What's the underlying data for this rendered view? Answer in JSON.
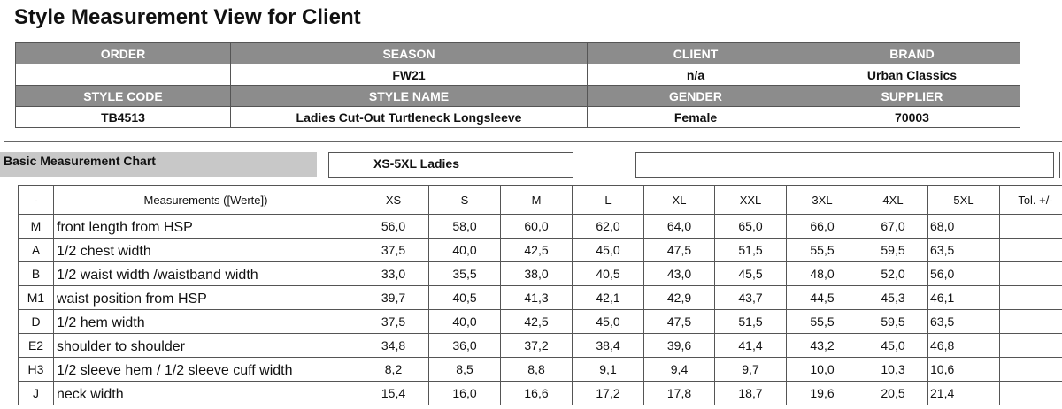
{
  "header": {
    "title": "Style Measurement View for Client"
  },
  "info": {
    "rows": [
      {
        "labels": [
          "ORDER",
          "SEASON",
          "CLIENT",
          "BRAND"
        ],
        "values": [
          null,
          "FW21",
          "n/a",
          "Urban Classics"
        ]
      },
      {
        "labels": [
          "STYLE CODE",
          "STYLE NAME",
          "GENDER",
          "SUPPLIER"
        ],
        "values": [
          "TB4513",
          "Ladies Cut-Out Turtleneck Longsleeve",
          "Female",
          "70003"
        ]
      }
    ]
  },
  "chart_section": {
    "label": "Basic Measurement Chart",
    "size_range": "XS-5XL Ladies"
  },
  "table": {
    "columns": [
      "-",
      "Measurements ([Werte])",
      "XS",
      "S",
      "M",
      "L",
      "XL",
      "XXL",
      "3XL",
      "4XL",
      "5XL",
      "Tol. +/-"
    ],
    "rows": [
      {
        "code": "M",
        "name": "front length from HSP",
        "values": [
          "56,0",
          "58,0",
          "60,0",
          "62,0",
          "64,0",
          "65,0",
          "66,0",
          "67,0",
          "68,0"
        ]
      },
      {
        "code": "A",
        "name": "1/2 chest width",
        "values": [
          "37,5",
          "40,0",
          "42,5",
          "45,0",
          "47,5",
          "51,5",
          "55,5",
          "59,5",
          "63,5"
        ]
      },
      {
        "code": "B",
        "name": "1/2 waist width /waistband width",
        "values": [
          "33,0",
          "35,5",
          "38,0",
          "40,5",
          "43,0",
          "45,5",
          "48,0",
          "52,0",
          "56,0"
        ]
      },
      {
        "code": "M1",
        "name": "waist position from HSP",
        "values": [
          "39,7",
          "40,5",
          "41,3",
          "42,1",
          "42,9",
          "43,7",
          "44,5",
          "45,3",
          "46,1"
        ]
      },
      {
        "code": "D",
        "name": "1/2 hem width",
        "values": [
          "37,5",
          "40,0",
          "42,5",
          "45,0",
          "47,5",
          "51,5",
          "55,5",
          "59,5",
          "63,5"
        ]
      },
      {
        "code": "E2",
        "name": "shoulder to shoulder",
        "values": [
          "34,8",
          "36,0",
          "37,2",
          "38,4",
          "39,6",
          "41,4",
          "43,2",
          "45,0",
          "46,8"
        ]
      },
      {
        "code": "H3",
        "name": "1/2 sleeve hem / 1/2 sleeve cuff width",
        "values": [
          "8,2",
          "8,5",
          "8,8",
          "9,1",
          "9,4",
          "9,7",
          "10,0",
          "10,3",
          "10,6"
        ]
      },
      {
        "code": "J",
        "name": "neck width",
        "values": [
          "15,4",
          "16,0",
          "16,6",
          "17,2",
          "17,8",
          "18,7",
          "19,6",
          "20,5",
          "21,4"
        ]
      }
    ]
  }
}
